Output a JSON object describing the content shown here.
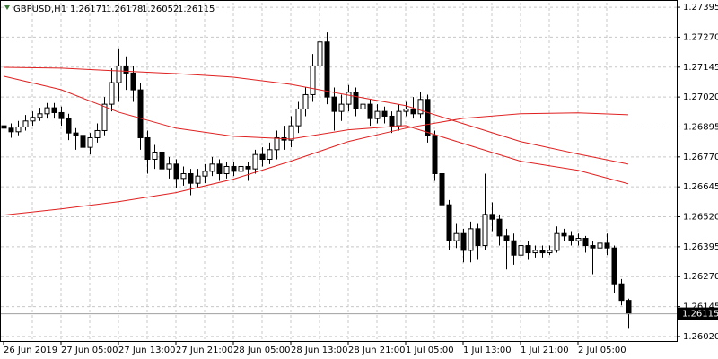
{
  "chart_data": {
    "type": "candlestick",
    "symbol": "GBPUSD,H1",
    "categories": [
      "26 Jun 2019",
      null,
      null,
      null,
      null,
      null,
      null,
      null,
      "27 Jun 05:00",
      null,
      null,
      null,
      null,
      null,
      null,
      null,
      "27 Jun 13:00",
      null,
      null,
      null,
      null,
      null,
      null,
      null,
      "27 Jun 21:00",
      null,
      null,
      null,
      null,
      null,
      null,
      null,
      "28 Jun 05:00",
      null,
      null,
      null,
      null,
      null,
      null,
      null,
      "28 Jun 13:00",
      null,
      null,
      null,
      null,
      null,
      null,
      null,
      "28 Jun 21:00",
      null,
      null,
      null,
      null,
      null,
      null,
      null,
      "1 Jul 05:00",
      null,
      null,
      null,
      null,
      null,
      null,
      null,
      "1 Jul 13:00",
      null,
      null,
      null,
      null,
      null,
      null,
      null,
      "1 Jul 21:00",
      null,
      null,
      null,
      null,
      null,
      null,
      null,
      "2 Jul 05:00",
      null,
      null,
      null,
      null,
      null,
      null,
      null
    ],
    "open": [
      1.269,
      1.2689,
      1.26875,
      1.26895,
      1.2692,
      1.26935,
      1.2695,
      1.26975,
      1.26955,
      1.2693,
      1.2687,
      1.2686,
      1.2681,
      1.2685,
      1.2688,
      1.2699,
      1.2708,
      1.2715,
      1.2712,
      1.2705,
      1.2685,
      1.2676,
      1.2679,
      1.2672,
      1.2674,
      1.2668,
      1.267,
      1.2666,
      1.2669,
      1.2671,
      1.2674,
      1.267,
      1.2673,
      1.2671,
      1.2673,
      1.2672,
      1.2678,
      1.2676,
      1.268,
      1.2685,
      1.2684,
      1.269,
      1.2697,
      1.2703,
      1.2715,
      1.2725,
      1.2702,
      1.2696,
      1.2699,
      1.2704,
      1.2697,
      1.2699,
      1.2693,
      1.2696,
      1.2694,
      1.269,
      1.2696,
      1.2697,
      1.2695,
      1.2701,
      1.2686,
      1.267,
      1.2657,
      1.2642,
      1.2645,
      1.2638,
      1.2647,
      1.264,
      1.2653,
      1.2651,
      1.2644,
      1.2642,
      1.2636,
      1.264,
      1.2637,
      1.2638,
      1.2637,
      1.2638,
      1.2645,
      1.2644,
      1.2642,
      1.2643,
      1.264,
      1.2639,
      1.2641,
      1.2639,
      1.2624,
      1.26171
    ],
    "high": [
      1.2693,
      1.2691,
      1.2692,
      1.26945,
      1.2696,
      1.26975,
      1.26995,
      1.26995,
      1.2698,
      1.2695,
      1.2689,
      1.2688,
      1.2687,
      1.2691,
      1.2702,
      1.2714,
      1.2722,
      1.2719,
      1.2715,
      1.2708,
      1.2688,
      1.2682,
      1.2681,
      1.2677,
      1.2676,
      1.2673,
      1.2672,
      1.2672,
      1.2674,
      1.2677,
      1.2676,
      1.2675,
      1.2675,
      1.2676,
      1.2675,
      1.268,
      1.2681,
      1.2683,
      1.2688,
      1.269,
      1.2694,
      1.27,
      1.2706,
      1.272,
      1.2734,
      1.2729,
      1.2706,
      1.2703,
      1.2707,
      1.2706,
      1.2702,
      1.2701,
      1.2699,
      1.2698,
      1.2696,
      1.2699,
      1.27,
      1.2702,
      1.2704,
      1.2703,
      1.2688,
      1.2672,
      1.2659,
      1.2649,
      1.2647,
      1.265,
      1.2649,
      1.267,
      1.2658,
      1.2653,
      1.2647,
      1.2645,
      1.2642,
      1.2642,
      1.264,
      1.264,
      1.264,
      1.2648,
      1.2647,
      1.2646,
      1.2645,
      1.2644,
      1.2642,
      1.2643,
      1.2645,
      1.264,
      1.2626,
      1.26178
    ],
    "low": [
      1.2686,
      1.2685,
      1.2686,
      1.2688,
      1.269,
      1.2692,
      1.2693,
      1.2693,
      1.269,
      1.2684,
      1.268,
      1.267,
      1.2678,
      1.2683,
      1.2686,
      1.2696,
      1.27,
      1.2705,
      1.27,
      1.268,
      1.267,
      1.2672,
      1.2666,
      1.2668,
      1.2664,
      1.2665,
      1.2661,
      1.2664,
      1.2666,
      1.2669,
      1.2667,
      1.2668,
      1.2669,
      1.2669,
      1.2667,
      1.267,
      1.2673,
      1.2674,
      1.2676,
      1.268,
      1.2681,
      1.2687,
      1.2694,
      1.27,
      1.271,
      1.2699,
      1.2688,
      1.2692,
      1.2696,
      1.2694,
      1.2695,
      1.269,
      1.2691,
      1.2691,
      1.2687,
      1.2688,
      1.2694,
      1.2693,
      1.2693,
      1.2683,
      1.2667,
      1.2653,
      1.2638,
      1.2639,
      1.2633,
      1.2633,
      1.2634,
      1.2638,
      1.2646,
      1.264,
      1.263,
      1.2632,
      1.2633,
      1.2634,
      1.2635,
      1.2635,
      1.2636,
      1.2637,
      1.2642,
      1.264,
      1.264,
      1.2637,
      1.2628,
      1.2637,
      1.2636,
      1.262,
      1.2615,
      1.26052
    ],
    "close": [
      1.2689,
      1.26875,
      1.26895,
      1.2692,
      1.26935,
      1.2695,
      1.26975,
      1.26955,
      1.2693,
      1.2687,
      1.2686,
      1.2681,
      1.2685,
      1.2688,
      1.2699,
      1.2708,
      1.2715,
      1.2712,
      1.2705,
      1.2685,
      1.2676,
      1.2679,
      1.2672,
      1.2674,
      1.2668,
      1.267,
      1.2666,
      1.2669,
      1.2671,
      1.2674,
      1.267,
      1.2673,
      1.2671,
      1.2673,
      1.2672,
      1.2678,
      1.2676,
      1.268,
      1.2685,
      1.2684,
      1.269,
      1.2697,
      1.2703,
      1.2715,
      1.2725,
      1.2702,
      1.2696,
      1.2699,
      1.2704,
      1.2697,
      1.2699,
      1.2693,
      1.2696,
      1.2694,
      1.269,
      1.2696,
      1.2697,
      1.2695,
      1.2701,
      1.2686,
      1.267,
      1.2657,
      1.2642,
      1.2645,
      1.2638,
      1.2647,
      1.264,
      1.2653,
      1.2651,
      1.2644,
      1.2642,
      1.2636,
      1.264,
      1.2637,
      1.2638,
      1.2637,
      1.2638,
      1.2645,
      1.2644,
      1.2642,
      1.2643,
      1.264,
      1.2639,
      1.2641,
      1.2639,
      1.2624,
      1.26171,
      1.26115
    ],
    "bull_color": "#ffffff",
    "bear_color": "#000000",
    "series": [
      {
        "color": "#e02020",
        "x": [
          0,
          8,
          16,
          24,
          32,
          40,
          48,
          56,
          64,
          72,
          80,
          87
        ],
        "values": [
          1.27144,
          1.27141,
          1.27129,
          1.27118,
          1.27103,
          1.27073,
          1.27028,
          1.26984,
          1.26909,
          1.26834,
          1.26782,
          1.2674
        ]
      },
      {
        "color": "#e02020",
        "x": [
          0,
          8,
          16,
          24,
          32,
          40,
          48,
          56,
          64,
          72,
          80,
          87
        ],
        "values": [
          1.27107,
          1.27051,
          1.26957,
          1.2689,
          1.26856,
          1.26845,
          1.26883,
          1.26901,
          1.26826,
          1.26752,
          1.26714,
          1.26658
        ]
      },
      {
        "color": "#e02020",
        "x": [
          0,
          8,
          16,
          24,
          32,
          40,
          48,
          56,
          64,
          72,
          80,
          87
        ],
        "values": [
          1.26527,
          1.26553,
          1.26583,
          1.26621,
          1.26677,
          1.26752,
          1.26834,
          1.2689,
          1.26931,
          1.2695,
          1.26954,
          1.26946
        ]
      }
    ],
    "ylim": [
      1.26001,
      1.27414
    ],
    "yticks": [
      1.27395,
      {
        "value": 1.2727,
        "label": "1.27270"
      },
      1.27145,
      {
        "value": 1.2702,
        "label": "1.27020"
      },
      1.26895,
      {
        "value": 1.2677,
        "label": "1.26770"
      },
      1.26645,
      {
        "value": 1.2652,
        "label": "1.26520"
      },
      1.26395,
      {
        "value": 1.2627,
        "label": "1.26270"
      },
      1.26145,
      {
        "value": 1.2602,
        "label": "1.26020"
      }
    ],
    "grid": true
  }
}
